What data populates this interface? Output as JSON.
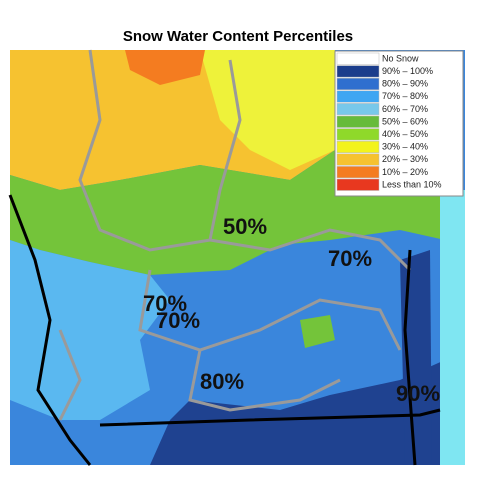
{
  "title": "Snow Water Content Percentiles",
  "legend": [
    {
      "label": "No Snow",
      "color": "#ffffff"
    },
    {
      "label": "90% – 100%",
      "color": "#1b3d8c"
    },
    {
      "label": "80% – 90%",
      "color": "#2f6fcf"
    },
    {
      "label": "70% – 80%",
      "color": "#3fa6f2"
    },
    {
      "label": "60% – 70%",
      "color": "#78c8ea"
    },
    {
      "label": "50% – 60%",
      "color": "#66bb3a"
    },
    {
      "label": "40% – 50%",
      "color": "#8fd92a"
    },
    {
      "label": "30% – 40%",
      "color": "#f3f31c"
    },
    {
      "label": "20% – 30%",
      "color": "#f6c230"
    },
    {
      "label": "10% – 20%",
      "color": "#f47c20"
    },
    {
      "label": "Less than 10%",
      "color": "#e8381f"
    }
  ],
  "labels": [
    "50%",
    "70%",
    "70%",
    "70%",
    "80%",
    "90%"
  ]
}
